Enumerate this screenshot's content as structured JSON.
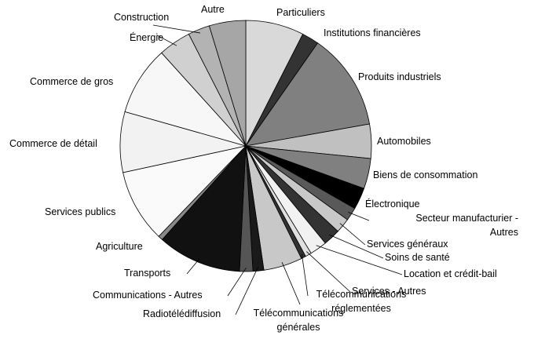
{
  "chart_data": {
    "type": "pie",
    "categories": [
      "Particuliers",
      "Institutions financières",
      "Produits industriels",
      "Automobiles",
      "Biens de consommation",
      "Électronique",
      "Secteur manufacturier - Autres",
      "Services généraux",
      "Soins de santé",
      "Location et crédit-bail",
      "Services - Autres",
      "Télécommunications réglementées",
      "Télécommunications générales",
      "Radiotélédiffusion",
      "Communications - Autres",
      "Transports",
      "Agriculture",
      "Services publics",
      "Commerce de détail",
      "Commerce de gros",
      "Énergie",
      "Construction",
      "Autre"
    ],
    "values": [
      7.5,
      2.2,
      12.5,
      4.4,
      3.9,
      2.8,
      1.7,
      1.9,
      2.2,
      2.2,
      0.8,
      0.6,
      5,
      1.4,
      1.7,
      10.8,
      0.6,
      9.4,
      7.8,
      8.9,
      4.2,
      2.8,
      4.7
    ],
    "colors": [
      "#d9d9d9",
      "#333333",
      "#808080",
      "#c0c0c0",
      "#808080",
      "#000000",
      "#595959",
      "#c8c8c8",
      "#333333",
      "#f2f2f2",
      "#e0e0e0",
      "#333333",
      "#c8c8c8",
      "#1a1a1a",
      "#555555",
      "#111111",
      "#888888",
      "#fafafa",
      "#f2f2f2",
      "#f7f7f7",
      "#d0d0d0",
      "#b3b3b3",
      "#a6a6a6"
    ]
  }
}
